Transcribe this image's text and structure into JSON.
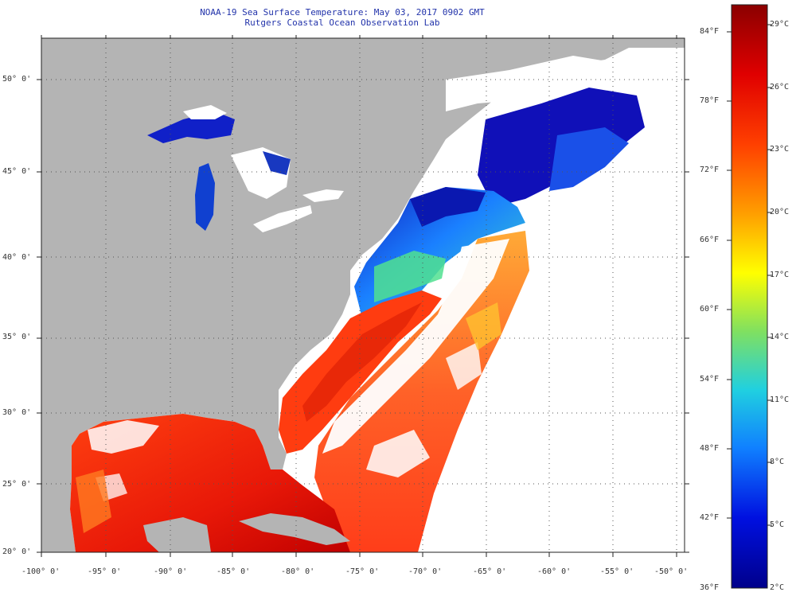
{
  "header": {
    "title": "NOAA-19 Sea Surface Temperature:  May 03, 2017 0902 GMT",
    "subtitle": "Rutgers Coastal Ocean Observation Lab"
  },
  "map": {
    "lat_labels": [
      "50° 0'",
      "45° 0'",
      "40° 0'",
      "35° 0'",
      "30° 0'",
      "25° 0'",
      "20° 0'"
    ],
    "lon_labels": [
      "-100° 0'",
      "-95° 0'",
      "-90° 0'",
      "-85° 0'",
      "-80° 0'",
      "-75° 0'",
      "-70° 0'",
      "-65° 0'",
      "-60° 0'",
      "-55° 0'",
      "-50° 0'"
    ],
    "colors": {
      "land": "#b4b4b4",
      "cloud": "#ffffff",
      "grid": "#444444"
    }
  },
  "colorbar": {
    "fahrenheit_labels": [
      "84°F",
      "78°F",
      "72°F",
      "66°F",
      "60°F",
      "54°F",
      "48°F",
      "42°F",
      "36°F"
    ],
    "celsius_labels": [
      "29°C",
      "26°C",
      "23°C",
      "20°C",
      "17°C",
      "14°C",
      "11°C",
      "8°C",
      "5°C",
      "2°C"
    ],
    "palette": [
      "#8b0000",
      "#ff2000",
      "#ff9a00",
      "#ffff00",
      "#20e0e0",
      "#0080ff",
      "#0000cd",
      "#00008b"
    ]
  }
}
